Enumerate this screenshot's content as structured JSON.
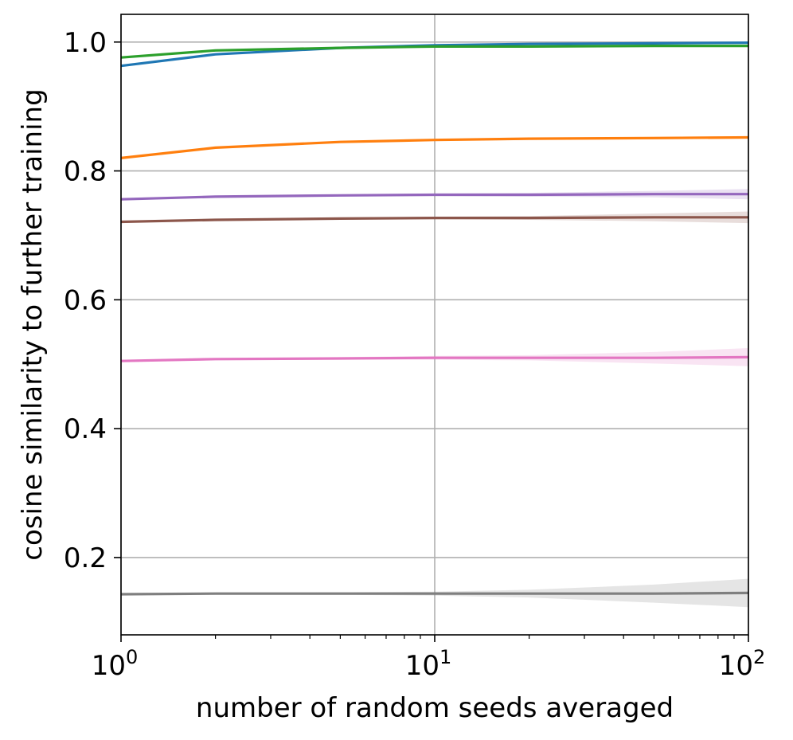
{
  "chart_data": {
    "type": "line",
    "title": "",
    "xlabel": "number of random seeds averaged",
    "ylabel": "cosine similarity to further training",
    "xscale": "log",
    "xlim": [
      1,
      100
    ],
    "ylim": [
      0.08,
      1.043
    ],
    "grid": true,
    "legend": "none",
    "x": [
      1,
      2,
      5,
      10,
      20,
      50,
      100
    ],
    "x_ticks": [
      {
        "value": 1,
        "base": "10",
        "exp": "0"
      },
      {
        "value": 10,
        "base": "10",
        "exp": "1"
      },
      {
        "value": 100,
        "base": "10",
        "exp": "2"
      }
    ],
    "y_ticks": [
      {
        "value": 0.2,
        "label": "0.2"
      },
      {
        "value": 0.4,
        "label": "0.4"
      },
      {
        "value": 0.6,
        "label": "0.6"
      },
      {
        "value": 0.8,
        "label": "0.8"
      },
      {
        "value": 1.0,
        "label": "1.0"
      }
    ],
    "series": [
      {
        "color": "#1f77b4",
        "values": [
          0.963,
          0.981,
          0.991,
          0.995,
          0.997,
          0.998,
          0.999
        ],
        "band": [
          0,
          0,
          0.001,
          0.001,
          0.001,
          0.001,
          0.001
        ]
      },
      {
        "color": "#2ca02c",
        "values": [
          0.976,
          0.987,
          0.991,
          0.993,
          0.993,
          0.994,
          0.994
        ],
        "band": [
          0,
          0,
          0.001,
          0.001,
          0.001,
          0.001,
          0.001
        ]
      },
      {
        "color": "#ff7f0e",
        "values": [
          0.82,
          0.836,
          0.845,
          0.848,
          0.85,
          0.851,
          0.852
        ],
        "band": [
          0,
          0,
          0.001,
          0.001,
          0.001,
          0.002,
          0.002
        ]
      },
      {
        "color": "#9467bd",
        "values": [
          0.756,
          0.76,
          0.762,
          0.763,
          0.763,
          0.764,
          0.764
        ],
        "band": [
          0,
          0.001,
          0.001,
          0.002,
          0.003,
          0.005,
          0.008
        ]
      },
      {
        "color": "#8c564b",
        "values": [
          0.721,
          0.724,
          0.726,
          0.727,
          0.727,
          0.728,
          0.728
        ],
        "band": [
          0,
          0.001,
          0.001,
          0.002,
          0.003,
          0.006,
          0.009
        ]
      },
      {
        "color": "#e377c2",
        "values": [
          0.505,
          0.508,
          0.509,
          0.51,
          0.51,
          0.51,
          0.511
        ],
        "band": [
          0,
          0.001,
          0.002,
          0.003,
          0.004,
          0.009,
          0.014
        ]
      },
      {
        "color": "#7f7f7f",
        "values": [
          0.143,
          0.144,
          0.144,
          0.144,
          0.144,
          0.144,
          0.145
        ],
        "band": [
          0,
          0.001,
          0.002,
          0.003,
          0.006,
          0.014,
          0.022
        ]
      }
    ],
    "colors": {
      "grid": "#b0b0b0",
      "axes": "#000000"
    }
  }
}
